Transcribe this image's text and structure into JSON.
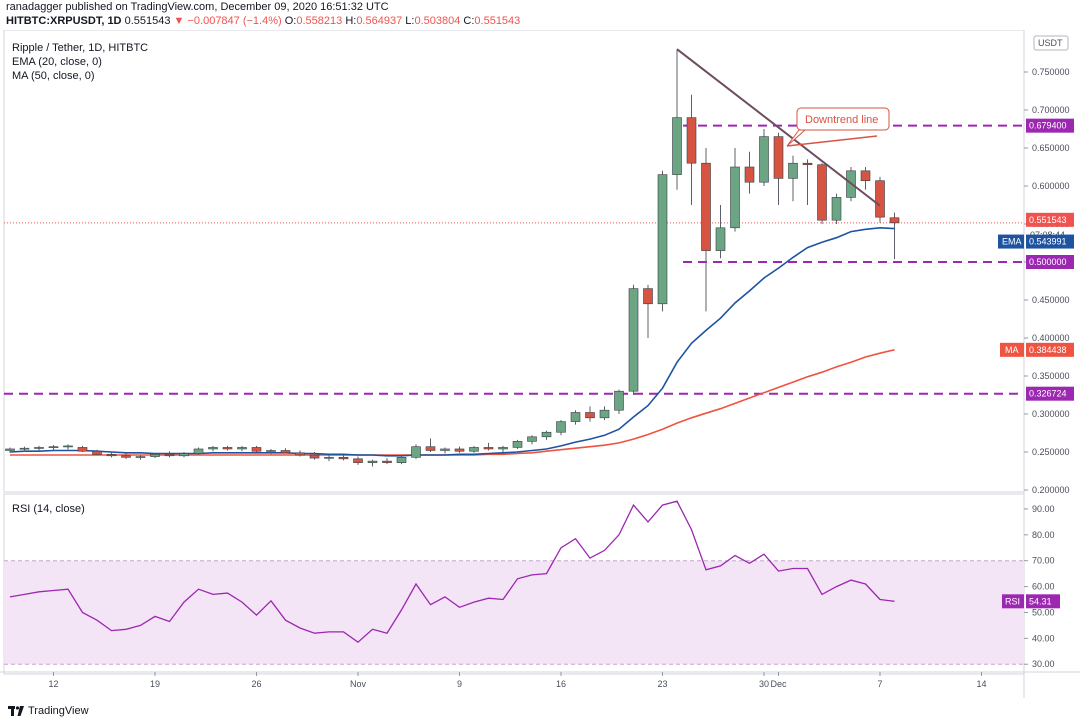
{
  "header": {
    "publish_line": "ranadagger published on TradingView.com, December 09, 2020 16:51:32 UTC",
    "symbol": "HITBTC:XRPUSDT, 1D",
    "last": "0.551543",
    "change": "−0.007847 (−1.4%)",
    "open_label": "O:",
    "open": "0.558213",
    "high_label": "H:",
    "high": "0.564937",
    "low_label": "L:",
    "low": "0.503804",
    "close_label": "C:",
    "close": "0.551543"
  },
  "legend": {
    "title": "Ripple / Tether, 1D, HITBTC",
    "ema": "EMA (20, close, 0)",
    "ma": "MA (50, close, 0)",
    "rsi": "RSI (14, close)"
  },
  "footer": {
    "brand": "TradingView"
  },
  "colors": {
    "up": "#6ba583",
    "down": "#d75442",
    "ema": "#1e53a0",
    "ma": "#ef5342",
    "level": "#9c27b0",
    "trend": "#6d4c5f",
    "rsi": "#9c27b0",
    "rsi_band": "#f3e5f5"
  },
  "chart_data": [
    {
      "type": "candlestick",
      "currency": "USDT",
      "ylim": [
        0.2,
        0.8
      ],
      "y_ticks": [
        "0.200000",
        "0.250000",
        "0.300000",
        "0.350000",
        "0.400000",
        "0.450000",
        "0.500000",
        "0.550000",
        "0.600000",
        "0.650000",
        "0.700000",
        "0.750000"
      ],
      "x_ticks": [
        "12",
        "19",
        "26",
        "Nov",
        "9",
        "16",
        "23",
        "30",
        "Dec",
        "7",
        "14"
      ],
      "x_tick_bar_index": [
        3,
        10,
        17,
        24,
        31,
        38,
        45,
        52,
        53,
        60,
        67
      ],
      "candles": [
        [
          0.252,
          0.256,
          0.249,
          0.254
        ],
        [
          0.254,
          0.257,
          0.25,
          0.255
        ],
        [
          0.255,
          0.258,
          0.251,
          0.256
        ],
        [
          0.256,
          0.259,
          0.252,
          0.257
        ],
        [
          0.257,
          0.26,
          0.253,
          0.258
        ],
        [
          0.256,
          0.258,
          0.25,
          0.251
        ],
        [
          0.251,
          0.253,
          0.246,
          0.247
        ],
        [
          0.247,
          0.251,
          0.243,
          0.245
        ],
        [
          0.245,
          0.248,
          0.241,
          0.243
        ],
        [
          0.243,
          0.246,
          0.24,
          0.244
        ],
        [
          0.244,
          0.248,
          0.242,
          0.247
        ],
        [
          0.247,
          0.251,
          0.243,
          0.245
        ],
        [
          0.245,
          0.25,
          0.243,
          0.248
        ],
        [
          0.248,
          0.256,
          0.246,
          0.254
        ],
        [
          0.254,
          0.258,
          0.251,
          0.256
        ],
        [
          0.256,
          0.258,
          0.252,
          0.254
        ],
        [
          0.254,
          0.258,
          0.251,
          0.256
        ],
        [
          0.256,
          0.258,
          0.25,
          0.251
        ],
        [
          0.251,
          0.254,
          0.247,
          0.252
        ],
        [
          0.252,
          0.255,
          0.248,
          0.249
        ],
        [
          0.249,
          0.252,
          0.244,
          0.246
        ],
        [
          0.246,
          0.25,
          0.24,
          0.242
        ],
        [
          0.242,
          0.246,
          0.238,
          0.243
        ],
        [
          0.243,
          0.246,
          0.239,
          0.241
        ],
        [
          0.241,
          0.244,
          0.233,
          0.236
        ],
        [
          0.236,
          0.24,
          0.231,
          0.238
        ],
        [
          0.238,
          0.242,
          0.234,
          0.236
        ],
        [
          0.236,
          0.245,
          0.234,
          0.243
        ],
        [
          0.243,
          0.26,
          0.241,
          0.257
        ],
        [
          0.257,
          0.268,
          0.25,
          0.252
        ],
        [
          0.252,
          0.256,
          0.248,
          0.254
        ],
        [
          0.254,
          0.257,
          0.249,
          0.251
        ],
        [
          0.251,
          0.258,
          0.249,
          0.256
        ],
        [
          0.256,
          0.262,
          0.252,
          0.254
        ],
        [
          0.254,
          0.258,
          0.25,
          0.256
        ],
        [
          0.256,
          0.266,
          0.254,
          0.264
        ],
        [
          0.264,
          0.272,
          0.26,
          0.27
        ],
        [
          0.27,
          0.278,
          0.266,
          0.276
        ],
        [
          0.276,
          0.292,
          0.272,
          0.29
        ],
        [
          0.29,
          0.305,
          0.286,
          0.302
        ],
        [
          0.302,
          0.31,
          0.29,
          0.295
        ],
        [
          0.295,
          0.31,
          0.292,
          0.305
        ],
        [
          0.305,
          0.332,
          0.3,
          0.33
        ],
        [
          0.33,
          0.47,
          0.325,
          0.465
        ],
        [
          0.465,
          0.47,
          0.4,
          0.445
        ],
        [
          0.445,
          0.62,
          0.435,
          0.615
        ],
        [
          0.615,
          0.78,
          0.595,
          0.69
        ],
        [
          0.69,
          0.72,
          0.575,
          0.63
        ],
        [
          0.63,
          0.65,
          0.435,
          0.515
        ],
        [
          0.515,
          0.575,
          0.505,
          0.545
        ],
        [
          0.545,
          0.65,
          0.54,
          0.625
        ],
        [
          0.625,
          0.645,
          0.59,
          0.605
        ],
        [
          0.605,
          0.675,
          0.6,
          0.665
        ],
        [
          0.665,
          0.67,
          0.575,
          0.61
        ],
        [
          0.61,
          0.64,
          0.58,
          0.63
        ],
        [
          0.63,
          0.635,
          0.575,
          0.628
        ],
        [
          0.628,
          0.63,
          0.55,
          0.555
        ],
        [
          0.555,
          0.59,
          0.55,
          0.585
        ],
        [
          0.585,
          0.625,
          0.58,
          0.62
        ],
        [
          0.62,
          0.625,
          0.595,
          0.607
        ],
        [
          0.607,
          0.612,
          0.552,
          0.559
        ],
        [
          0.558213,
          0.564937,
          0.503804,
          0.551543
        ]
      ],
      "ema20": [
        0.25,
        0.251,
        0.251,
        0.252,
        0.252,
        0.252,
        0.251,
        0.25,
        0.249,
        0.249,
        0.248,
        0.248,
        0.248,
        0.248,
        0.249,
        0.249,
        0.249,
        0.249,
        0.249,
        0.249,
        0.248,
        0.248,
        0.247,
        0.247,
        0.246,
        0.246,
        0.245,
        0.245,
        0.246,
        0.246,
        0.246,
        0.247,
        0.247,
        0.248,
        0.249,
        0.25,
        0.252,
        0.254,
        0.258,
        0.263,
        0.267,
        0.272,
        0.28,
        0.296,
        0.311,
        0.334,
        0.368,
        0.393,
        0.41,
        0.426,
        0.446,
        0.462,
        0.479,
        0.492,
        0.506,
        0.519,
        0.526,
        0.532,
        0.54,
        0.543,
        0.545,
        0.544
      ],
      "ma50": [
        0.246,
        0.246,
        0.246,
        0.246,
        0.246,
        0.246,
        0.246,
        0.246,
        0.246,
        0.246,
        0.246,
        0.246,
        0.246,
        0.246,
        0.246,
        0.246,
        0.246,
        0.246,
        0.246,
        0.246,
        0.246,
        0.246,
        0.246,
        0.246,
        0.246,
        0.246,
        0.246,
        0.246,
        0.246,
        0.246,
        0.246,
        0.246,
        0.246,
        0.247,
        0.247,
        0.248,
        0.249,
        0.251,
        0.253,
        0.255,
        0.257,
        0.259,
        0.262,
        0.267,
        0.273,
        0.28,
        0.288,
        0.295,
        0.301,
        0.307,
        0.314,
        0.321,
        0.328,
        0.335,
        0.342,
        0.349,
        0.355,
        0.362,
        0.368,
        0.375,
        0.38,
        0.384438
      ],
      "levels": [
        {
          "value": 0.6794,
          "label": "0.679400"
        },
        {
          "value": 0.5,
          "label": "0.500000"
        },
        {
          "value": 0.326724,
          "label": "0.326724"
        }
      ],
      "price_badge": {
        "value": 0.551543,
        "label": "0.551543",
        "countdown": "07:08:44"
      },
      "ema_badge": {
        "name": "EMA",
        "value": 0.543991,
        "label": "0.543991"
      },
      "ma_badge": {
        "name": "MA",
        "value": 0.384438,
        "label": "0.384438"
      },
      "trendline": {
        "start_index": 46,
        "start_value": 0.78,
        "end_index": 60,
        "end_value": 0.574
      },
      "annotation": "Downtrend line"
    },
    {
      "type": "line",
      "name": "RSI (14, close)",
      "ylim": [
        27,
        95
      ],
      "y_ticks": [
        "30.00",
        "40.00",
        "50.00",
        "60.00",
        "70.00",
        "80.00",
        "90.00"
      ],
      "band": [
        30,
        70
      ],
      "values": [
        56,
        57,
        58,
        58.5,
        59,
        50,
        47,
        43,
        43.5,
        45,
        48.5,
        46.5,
        54,
        59,
        57,
        57.5,
        54,
        49,
        54.5,
        47,
        44,
        42,
        42.5,
        42.5,
        38.5,
        43.5,
        42,
        51,
        61,
        53,
        56,
        52,
        54,
        55.5,
        55,
        63,
        64.5,
        65,
        75,
        78.5,
        71,
        74,
        80,
        91.5,
        85,
        91.5,
        93,
        82,
        66.5,
        68,
        72,
        69,
        72.5,
        66,
        67,
        67,
        57,
        60,
        62.5,
        61,
        55,
        54.31
      ],
      "badge": {
        "name": "RSI",
        "label": "54.31"
      }
    }
  ]
}
